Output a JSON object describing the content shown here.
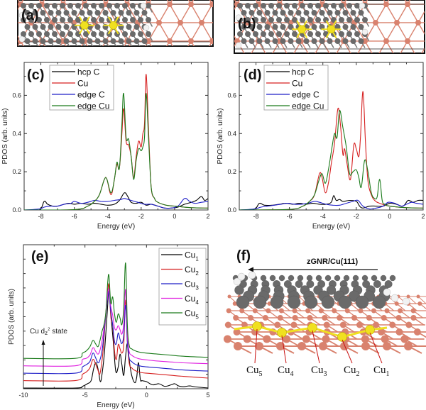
{
  "figure": {
    "panels": {
      "a": "(a)",
      "b": "(b)",
      "c": "(c)",
      "d": "(d)",
      "e": "(e)",
      "f": "(f)"
    },
    "structure_f": {
      "title": "zGNR/Cu(111)",
      "atom_labels": [
        {
          "base": "Cu",
          "sub": "5"
        },
        {
          "base": "Cu",
          "sub": "4"
        },
        {
          "base": "Cu",
          "sub": "3"
        },
        {
          "base": "Cu",
          "sub": "2"
        },
        {
          "base": "Cu",
          "sub": "1"
        }
      ]
    },
    "colors": {
      "black": "#000000",
      "red": "#d62020",
      "blue": "#1f1fc8",
      "green": "#1a7a1a",
      "magenta": "#e020e0",
      "copper": "#d9826e",
      "carbon": "#6a6a6a",
      "hydrogen": "#f2f2f2",
      "highlight": "#f0e020"
    }
  },
  "chart_data": [
    {
      "id": "c",
      "type": "line",
      "title": "",
      "xlabel": "Energy (eV)",
      "ylabel": "PDOS (arb. units)",
      "xlim": [
        -9,
        2
      ],
      "ylim": [
        0,
        0.75
      ],
      "xticks": [
        -8,
        -6,
        -4,
        -2,
        0,
        2
      ],
      "yticks": [
        0.0,
        0.2,
        0.4,
        0.6
      ],
      "ytick_labels": [
        "0.0",
        "0.2",
        "0.4",
        "0.6"
      ],
      "legend": "top-left",
      "series": [
        {
          "name": "hcp C",
          "color": "#000000",
          "x": [
            -9,
            -8.1,
            -7.8,
            -7.6,
            -7.3,
            -7,
            -6.6,
            -6.3,
            -6,
            -5.6,
            -5.2,
            -4.8,
            -4.4,
            -4,
            -3.6,
            -3.3,
            -3,
            -2.8,
            -2.6,
            -2.3,
            -2,
            -1.7,
            -1.4,
            -1,
            -0.6,
            -0.2,
            0.2,
            0.6,
            1,
            1.3,
            1.6,
            1.8,
            2
          ],
          "y": [
            0,
            0,
            0.045,
            0.03,
            0.02,
            0.02,
            0.03,
            0.035,
            0.03,
            0.035,
            0.03,
            0.035,
            0.03,
            0.025,
            0.03,
            0.05,
            0.09,
            0.07,
            0.04,
            0.035,
            0.04,
            0.025,
            0.03,
            0.02,
            0.01,
            0.01,
            0.015,
            0.03,
            0.04,
            0.05,
            0.07,
            0.05,
            0.06
          ]
        },
        {
          "name": "Cu",
          "color": "#d62020",
          "x": [
            -9,
            -6,
            -5.2,
            -4.8,
            -4.5,
            -4.2,
            -4.05,
            -3.8,
            -3.6,
            -3.45,
            -3.3,
            -3.15,
            -3.05,
            -2.9,
            -2.75,
            -2.6,
            -2.45,
            -2.3,
            -2.15,
            -2.0,
            -1.9,
            -1.8,
            -1.7,
            -1.55,
            -1.4,
            -1.2,
            -1,
            -0.5,
            0,
            1,
            2
          ],
          "y": [
            0,
            0.002,
            0.02,
            0.045,
            0.08,
            0.16,
            0.16,
            0.08,
            0.16,
            0.24,
            0.22,
            0.4,
            0.53,
            0.36,
            0.34,
            0.28,
            0.17,
            0.28,
            0.36,
            0.33,
            0.4,
            0.45,
            0.71,
            0.4,
            0.12,
            0.06,
            0.04,
            0.025,
            0.02,
            0.012,
            0.01
          ]
        },
        {
          "name": "edge C",
          "color": "#1f1fc8",
          "x": [
            -9,
            -8.1,
            -7.8,
            -7.4,
            -7,
            -6.6,
            -6.2,
            -6,
            -5.6,
            -5.2,
            -4.8,
            -4.4,
            -4,
            -3.6,
            -3.2,
            -3,
            -2.6,
            -2.2,
            -1.8,
            -1.4,
            -1,
            -0.6,
            -0.2,
            0.2,
            0.6,
            0.9,
            1.2,
            1.6,
            2
          ],
          "y": [
            0,
            0.005,
            0.015,
            0.02,
            0.02,
            0.03,
            0.035,
            0.045,
            0.035,
            0.04,
            0.05,
            0.045,
            0.045,
            0.05,
            0.055,
            0.06,
            0.05,
            0.04,
            0.03,
            0.03,
            0.02,
            0.01,
            0.01,
            0.02,
            0.06,
            0.045,
            0.035,
            0.04,
            0.045
          ]
        },
        {
          "name": "edge Cu",
          "color": "#1a7a1a",
          "x": [
            -9,
            -6,
            -5.2,
            -4.8,
            -4.5,
            -4.2,
            -4.05,
            -3.8,
            -3.6,
            -3.45,
            -3.3,
            -3.15,
            -3.05,
            -2.9,
            -2.75,
            -2.6,
            -2.45,
            -2.3,
            -2.15,
            -2.0,
            -1.9,
            -1.8,
            -1.7,
            -1.55,
            -1.4,
            -1.2,
            -1,
            -0.5,
            0,
            1,
            2
          ],
          "y": [
            0,
            0.002,
            0.02,
            0.045,
            0.08,
            0.16,
            0.16,
            0.09,
            0.16,
            0.25,
            0.22,
            0.45,
            0.61,
            0.38,
            0.37,
            0.28,
            0.16,
            0.26,
            0.32,
            0.31,
            0.33,
            0.38,
            0.61,
            0.36,
            0.12,
            0.06,
            0.04,
            0.025,
            0.02,
            0.012,
            0.01
          ]
        }
      ]
    },
    {
      "id": "d",
      "type": "line",
      "title": "",
      "xlabel": "Energy (eV)",
      "ylabel": "PDOS (arb. units)",
      "xlim": [
        -9,
        2
      ],
      "ylim": [
        0,
        0.75
      ],
      "xticks": [
        -8,
        -6,
        -4,
        -2,
        0,
        2
      ],
      "yticks": [
        0.0,
        0.2,
        0.4,
        0.6
      ],
      "ytick_labels": [
        "0.0",
        "0.2",
        "0.4",
        "0.6"
      ],
      "legend": "top-left",
      "series": [
        {
          "name": "hcp C",
          "color": "#000000",
          "x": [
            -9,
            -8.1,
            -7.8,
            -7.5,
            -7,
            -6.6,
            -6.2,
            -5.8,
            -5.4,
            -5,
            -4.6,
            -4.2,
            -3.8,
            -3.5,
            -3.35,
            -3.2,
            -3,
            -2.8,
            -2.4,
            -2,
            -1.8,
            -1.6,
            -1.2,
            -0.8,
            -0.4,
            0,
            0.4,
            0.8,
            1.1,
            1.4,
            1.7,
            2
          ],
          "y": [
            0,
            0.005,
            0.035,
            0.025,
            0.025,
            0.03,
            0.035,
            0.03,
            0.035,
            0.03,
            0.035,
            0.03,
            0.03,
            0.04,
            0.075,
            0.05,
            0.055,
            0.045,
            0.05,
            0.045,
            0.02,
            0.01,
            0.02,
            0.02,
            0.02,
            0.035,
            0.03,
            0.02,
            0.05,
            0.04,
            0.05,
            0.05
          ]
        },
        {
          "name": "Cu",
          "color": "#d62020",
          "x": [
            -9,
            -6,
            -5.2,
            -4.8,
            -4.5,
            -4.2,
            -4.05,
            -3.85,
            -3.65,
            -3.5,
            -3.3,
            -3.1,
            -2.95,
            -2.8,
            -2.7,
            -2.55,
            -2.35,
            -2.15,
            -2.0,
            -1.85,
            -1.75,
            -1.6,
            -1.45,
            -1.3,
            -1.1,
            -0.9,
            -0.6,
            0,
            1,
            2
          ],
          "y": [
            0,
            0.003,
            0.02,
            0.045,
            0.08,
            0.19,
            0.17,
            0.09,
            0.15,
            0.24,
            0.35,
            0.53,
            0.45,
            0.29,
            0.32,
            0.24,
            0.16,
            0.34,
            0.32,
            0.28,
            0.38,
            0.62,
            0.35,
            0.15,
            0.08,
            0.05,
            0.035,
            0.02,
            0.012,
            0.01
          ]
        },
        {
          "name": "edge C",
          "color": "#1f1fc8",
          "x": [
            -9,
            -8.1,
            -7.7,
            -7.3,
            -6.9,
            -6.5,
            -6.1,
            -5.7,
            -5.3,
            -4.9,
            -4.5,
            -4.2,
            -3.8,
            -3.4,
            -3,
            -2.6,
            -2.2,
            -1.9,
            -1.6,
            -1.2,
            -0.8,
            -0.4,
            -0.1,
            0.3,
            0.7,
            1.0,
            1.3,
            1.6,
            2
          ],
          "y": [
            0,
            0.005,
            0.015,
            0.02,
            0.025,
            0.03,
            0.035,
            0.03,
            0.03,
            0.035,
            0.045,
            0.04,
            0.03,
            0.025,
            0.025,
            0.035,
            0.045,
            0.05,
            0.02,
            0.005,
            0.01,
            0.02,
            0.04,
            0.035,
            0.02,
            0.03,
            0.04,
            0.035,
            0.03
          ]
        },
        {
          "name": "edge Cu",
          "color": "#1a7a1a",
          "x": [
            -9,
            -6,
            -5.2,
            -4.8,
            -4.5,
            -4.25,
            -4.05,
            -3.85,
            -3.65,
            -3.45,
            -3.3,
            -3.15,
            -3.0,
            -2.8,
            -2.6,
            -2.4,
            -2.2,
            -2.0,
            -1.85,
            -1.7,
            -1.5,
            -1.3,
            -1.1,
            -0.9,
            -0.75,
            -0.6,
            -0.45,
            -0.3,
            0,
            1,
            2
          ],
          "y": [
            0,
            0.003,
            0.02,
            0.045,
            0.08,
            0.15,
            0.19,
            0.14,
            0.22,
            0.33,
            0.4,
            0.38,
            0.52,
            0.43,
            0.33,
            0.19,
            0.2,
            0.21,
            0.17,
            0.12,
            0.26,
            0.2,
            0.09,
            0.06,
            0.07,
            0.16,
            0.05,
            0.03,
            0.02,
            0.012,
            0.01
          ]
        }
      ]
    },
    {
      "id": "e",
      "type": "line",
      "title": "",
      "xlabel": "Energy (eV)",
      "ylabel": "PDOS (arb. units)",
      "xlim": [
        -10,
        5
      ],
      "ylim": [
        0,
        10
      ],
      "xticks": [
        -10,
        -5,
        0,
        5
      ],
      "yticks": [],
      "legend": "top-right",
      "annotation": {
        "text": "Cu d",
        "sub": "z",
        "sup": "2",
        "after": " state"
      },
      "offset_step": 0.35,
      "series": [
        {
          "name": "Cu",
          "sub": "1",
          "color": "#000000",
          "offset": 0,
          "x": [
            -10,
            -5.8,
            -5.2,
            -4.8,
            -4.5,
            -4.3,
            -4.1,
            -3.9,
            -3.75,
            -3.6,
            -3.4,
            -3.2,
            -3.05,
            -2.9,
            -2.7,
            -2.5,
            -2.3,
            -2.15,
            -2.0,
            -1.85,
            -1.7,
            -1.55,
            -1.4,
            -1.2,
            -0.95,
            -0.8,
            -0.65,
            -0.5,
            -0.35,
            0,
            0.5,
            1,
            1.5,
            2,
            2.3,
            2.6,
            3,
            3.5,
            4,
            5
          ],
          "y": [
            0,
            0,
            0.08,
            0.2,
            0.35,
            0.9,
            1.2,
            0.8,
            0.3,
            0.7,
            1.8,
            3.5,
            4.6,
            3.5,
            2.2,
            0.8,
            1.0,
            1.6,
            1.1,
            0.6,
            1.5,
            2.1,
            1.3,
            0.6,
            0.25,
            0.5,
            1.2,
            0.4,
            0.35,
            0.3,
            0.15,
            0.2,
            0.08,
            0.15,
            0.2,
            0.1,
            0.06,
            0.1,
            0.05,
            0
          ]
        },
        {
          "name": "Cu",
          "sub": "2",
          "color": "#d62020",
          "offset": 0.35,
          "x": [
            -10,
            -5.8,
            -5.2,
            -4.9,
            -4.6,
            -4.35,
            -4.15,
            -3.95,
            -3.8,
            -3.6,
            -3.45,
            -3.3,
            -3.15,
            -3.05,
            -2.9,
            -2.75,
            -2.6,
            -2.45,
            -2.3,
            -2.15,
            -2.0,
            -1.85,
            -1.7,
            -1.55,
            -1.4,
            -1.2,
            -1,
            -0.6,
            0,
            1,
            2,
            3,
            5
          ],
          "y": [
            0,
            0,
            0.3,
            0.4,
            0.6,
            1.0,
            0.8,
            0.5,
            0.3,
            1.0,
            2.0,
            3.2,
            4.2,
            4.5,
            3.0,
            2.6,
            1.4,
            1.0,
            1.7,
            1.5,
            1.3,
            1.7,
            3.8,
            1.8,
            0.8,
            0.6,
            0.5,
            0.4,
            0.35,
            0.3,
            0.25,
            0.2,
            0.12
          ]
        },
        {
          "name": "Cu",
          "sub": "3",
          "color": "#1f1fc8",
          "offset": 0.7,
          "x": [
            -10,
            -5.8,
            -5.2,
            -4.9,
            -4.6,
            -4.35,
            -4.15,
            -3.95,
            -3.8,
            -3.6,
            -3.45,
            -3.3,
            -3.15,
            -3.05,
            -2.9,
            -2.75,
            -2.6,
            -2.45,
            -2.3,
            -2.15,
            -2.0,
            -1.85,
            -1.7,
            -1.55,
            -1.4,
            -1.2,
            -1,
            -0.6,
            0,
            1,
            2,
            3,
            5
          ],
          "y": [
            0,
            0,
            0.3,
            0.4,
            0.55,
            0.95,
            0.75,
            0.5,
            0.6,
            1.1,
            1.9,
            2.8,
            3.6,
            3.8,
            2.9,
            2.3,
            1.5,
            1.4,
            1.9,
            1.6,
            1.4,
            1.8,
            3.2,
            1.4,
            0.7,
            0.55,
            0.45,
            0.35,
            0.3,
            0.25,
            0.2,
            0.15,
            0.1
          ]
        },
        {
          "name": "Cu",
          "sub": "4",
          "color": "#e020e0",
          "offset": 1.05,
          "x": [
            -10,
            -5.8,
            -5.2,
            -4.9,
            -4.6,
            -4.35,
            -4.15,
            -3.95,
            -3.8,
            -3.6,
            -3.45,
            -3.3,
            -3.15,
            -3.05,
            -2.9,
            -2.75,
            -2.6,
            -2.45,
            -2.3,
            -2.15,
            -2.0,
            -1.85,
            -1.7,
            -1.55,
            -1.4,
            -1.2,
            -1,
            -0.6,
            0,
            1,
            2,
            3,
            5
          ],
          "y": [
            0,
            0,
            0.3,
            0.35,
            0.5,
            0.85,
            0.7,
            0.55,
            0.7,
            1.2,
            1.8,
            2.5,
            3.4,
            3.6,
            2.8,
            2.4,
            1.8,
            1.7,
            1.9,
            1.7,
            1.5,
            2.0,
            3.6,
            1.4,
            0.65,
            0.5,
            0.42,
            0.33,
            0.28,
            0.22,
            0.18,
            0.14,
            0.1
          ]
        },
        {
          "name": "Cu",
          "sub": "5",
          "color": "#1a7a1a",
          "offset": 1.4,
          "x": [
            -10,
            -5.8,
            -5.2,
            -4.9,
            -4.6,
            -4.35,
            -4.15,
            -3.95,
            -3.8,
            -3.6,
            -3.45,
            -3.3,
            -3.15,
            -3.05,
            -2.9,
            -2.75,
            -2.6,
            -2.45,
            -2.3,
            -2.15,
            -2.0,
            -1.85,
            -1.7,
            -1.55,
            -1.4,
            -1.2,
            -1,
            -0.6,
            0,
            1,
            2,
            3,
            5
          ],
          "y": [
            0,
            0,
            0.25,
            0.35,
            0.55,
            0.85,
            0.7,
            0.55,
            0.8,
            1.3,
            1.6,
            2.2,
            3.6,
            3.9,
            2.6,
            2.9,
            2.1,
            1.7,
            2.1,
            1.9,
            1.6,
            2.4,
            4.5,
            1.5,
            0.6,
            0.45,
            0.38,
            0.3,
            0.25,
            0.2,
            0.15,
            0.1,
            0.05
          ]
        }
      ]
    }
  ]
}
